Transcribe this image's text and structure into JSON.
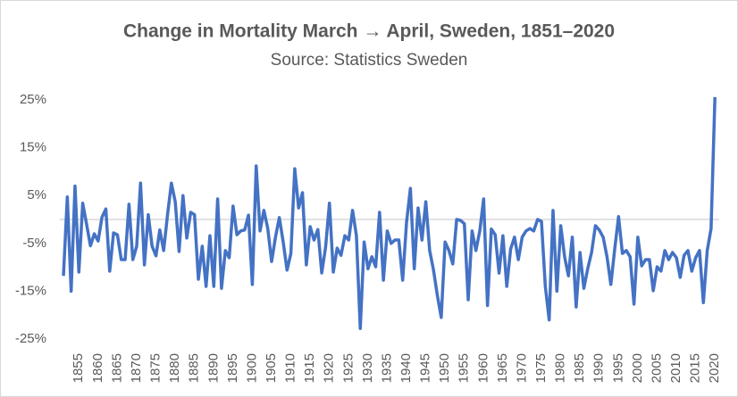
{
  "chart_data": {
    "type": "line",
    "title": "Change in Mortality March → April, Sweden, 1851–2020",
    "subtitle": "Source: Statistics Sweden",
    "x": [
      1851,
      1852,
      1853,
      1854,
      1855,
      1856,
      1857,
      1858,
      1859,
      1860,
      1861,
      1862,
      1863,
      1864,
      1865,
      1866,
      1867,
      1868,
      1869,
      1870,
      1871,
      1872,
      1873,
      1874,
      1875,
      1876,
      1877,
      1878,
      1879,
      1880,
      1881,
      1882,
      1883,
      1884,
      1885,
      1886,
      1887,
      1888,
      1889,
      1890,
      1891,
      1892,
      1893,
      1894,
      1895,
      1896,
      1897,
      1898,
      1899,
      1900,
      1901,
      1902,
      1903,
      1904,
      1905,
      1906,
      1907,
      1908,
      1909,
      1910,
      1911,
      1912,
      1913,
      1914,
      1915,
      1916,
      1917,
      1918,
      1919,
      1920,
      1921,
      1922,
      1923,
      1924,
      1925,
      1926,
      1927,
      1928,
      1929,
      1930,
      1931,
      1932,
      1933,
      1934,
      1935,
      1936,
      1937,
      1938,
      1939,
      1940,
      1941,
      1942,
      1943,
      1944,
      1945,
      1946,
      1947,
      1948,
      1949,
      1950,
      1951,
      1952,
      1953,
      1954,
      1955,
      1956,
      1957,
      1958,
      1959,
      1960,
      1961,
      1962,
      1963,
      1964,
      1965,
      1966,
      1967,
      1968,
      1969,
      1970,
      1971,
      1972,
      1973,
      1974,
      1975,
      1976,
      1977,
      1978,
      1979,
      1980,
      1981,
      1982,
      1983,
      1984,
      1985,
      1986,
      1987,
      1988,
      1989,
      1990,
      1991,
      1992,
      1993,
      1994,
      1995,
      1996,
      1997,
      1998,
      1999,
      2000,
      2001,
      2002,
      2003,
      2004,
      2005,
      2006,
      2007,
      2008,
      2009,
      2010,
      2011,
      2012,
      2013,
      2014,
      2015,
      2016,
      2017,
      2018,
      2019,
      2020
    ],
    "series": [
      {
        "name": "Change in mortality",
        "color": "#4472c4",
        "values": [
          -11.8,
          4.7,
          -15,
          7,
          -11,
          3.4,
          -1,
          -5.5,
          -3,
          -4.5,
          0.5,
          2.2,
          -10.8,
          -2.8,
          -3.2,
          -8.4,
          -8.4,
          3.2,
          -8.4,
          -5.6,
          7.6,
          -9.5,
          1,
          -5.6,
          -7.6,
          -2.2,
          -6.5,
          1,
          7.6,
          3.7,
          -6.7,
          5,
          -3.9,
          1.5,
          1,
          -12.5,
          -5.6,
          -14,
          -3.4,
          -14,
          4.3,
          -14.4,
          -6.5,
          -8,
          2.8,
          -3.2,
          -2.4,
          -2.2,
          0.9,
          -13.6,
          11.2,
          -2.4,
          1.9,
          -1.9,
          -8.8,
          -3.7,
          0.4,
          -4.7,
          -10.6,
          -7.1,
          10.6,
          2.4,
          5.6,
          -9.5,
          -1.5,
          -4.3,
          -2.1,
          -11.2,
          -5.8,
          3.4,
          -11,
          -6,
          -7.5,
          -3.4,
          -4.3,
          1.9,
          -3.4,
          -22.8,
          -4.7,
          -10.3,
          -7.8,
          -9.9,
          1.5,
          -12.7,
          -2.4,
          -5,
          -4.3,
          -4.3,
          -12.7,
          -0.6,
          6.5,
          -10.3,
          2.4,
          -4.3,
          3.7,
          -6.5,
          -10.6,
          -15.9,
          -20.5,
          -4.7,
          -6.5,
          -9.3,
          0,
          -0.2,
          -0.9,
          -16.8,
          -2.4,
          -6.5,
          -2.4,
          4.3,
          -18,
          -2,
          -3.2,
          -11.2,
          -3.4,
          -14,
          -6.2,
          -3.7,
          -8.4,
          -3.7,
          -2.4,
          -1.9,
          -2.4,
          0,
          -0.4,
          -14,
          -21,
          1.9,
          -15,
          -1.3,
          -7.8,
          -11.8,
          -3.7,
          -18.3,
          -6.9,
          -14.4,
          -10.3,
          -6.9,
          -1.3,
          -2.2,
          -3.7,
          -7.8,
          -13.6,
          -6.2,
          0.6,
          -7.1,
          -6.5,
          -7.8,
          -17.7,
          -3.7,
          -9.7,
          -8.4,
          -8.4,
          -14.9,
          -9.9,
          -10.8,
          -6.5,
          -8.4,
          -6.9,
          -8,
          -12.1,
          -7.5,
          -6.5,
          -10.8,
          -8,
          -6.5,
          -17.4,
          -6.5,
          -1.9,
          25.6
        ]
      }
    ],
    "xlim": [
      1850,
      2021
    ],
    "xticks": [
      1855,
      1860,
      1865,
      1870,
      1875,
      1880,
      1885,
      1890,
      1895,
      1900,
      1905,
      1910,
      1915,
      1920,
      1925,
      1930,
      1935,
      1940,
      1945,
      1950,
      1955,
      1960,
      1965,
      1970,
      1975,
      1980,
      1985,
      1990,
      1995,
      2000,
      2005,
      2010,
      2015,
      2020
    ],
    "ylim": [
      -25,
      25
    ],
    "yticks": [
      {
        "value": -25,
        "label": "-25%"
      },
      {
        "value": -15,
        "label": "-15%"
      },
      {
        "value": -5,
        "label": "-5%"
      },
      {
        "value": 5,
        "label": "5%"
      },
      {
        "value": 15,
        "label": "15%"
      },
      {
        "value": 25,
        "label": "25%"
      }
    ],
    "zero_line": true,
    "grid": false,
    "legend": false
  }
}
